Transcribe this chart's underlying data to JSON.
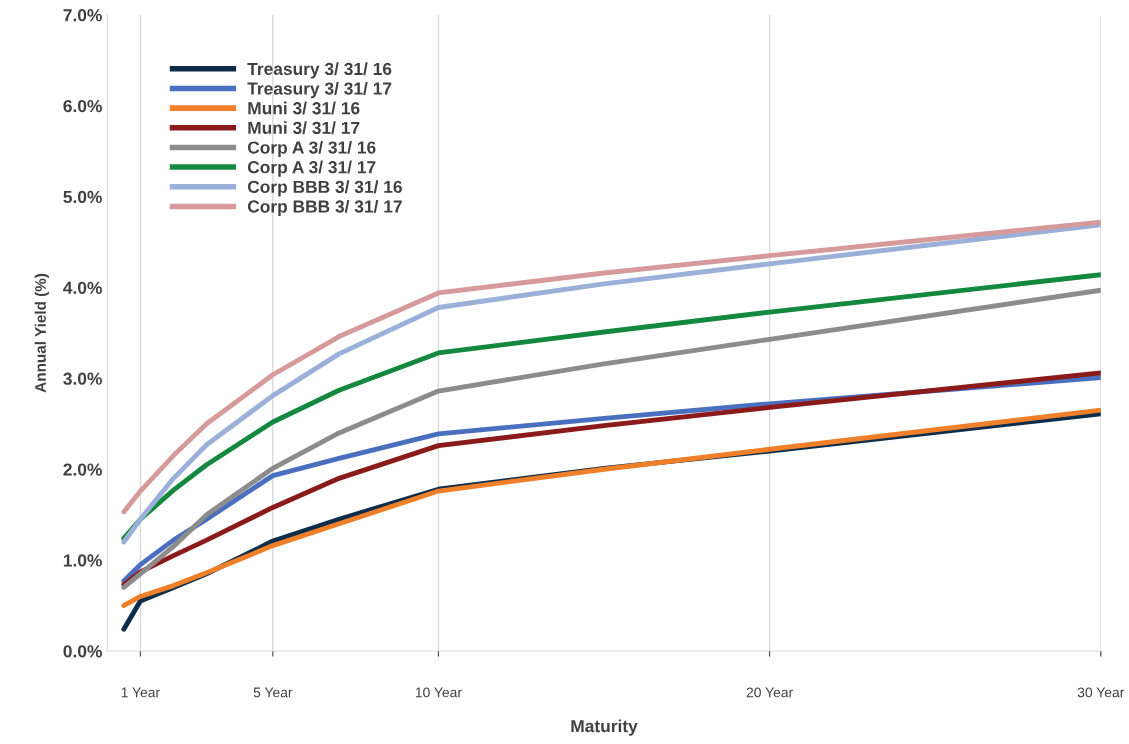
{
  "chart_data": {
    "type": "line",
    "xlabel": "Maturity",
    "ylabel": "Annual Yield (%)",
    "x": [
      0.5,
      1,
      2,
      3,
      5,
      7,
      10,
      15,
      20,
      30
    ],
    "xlim": [
      0,
      30
    ],
    "xticks": [
      {
        "value": 1,
        "label": "1 Year"
      },
      {
        "value": 5,
        "label": "5 Year"
      },
      {
        "value": 10,
        "label": "10 Year"
      },
      {
        "value": 20,
        "label": "20 Year"
      },
      {
        "value": 30,
        "label": "30 Year"
      }
    ],
    "ylim": [
      0,
      7
    ],
    "yticks": [
      {
        "value": 0,
        "label": "0.0%"
      },
      {
        "value": 1,
        "label": "1.0%"
      },
      {
        "value": 2,
        "label": "2.0%"
      },
      {
        "value": 3,
        "label": "3.0%"
      },
      {
        "value": 4,
        "label": "4.0%"
      },
      {
        "value": 5,
        "label": "5.0%"
      },
      {
        "value": 6,
        "label": "6.0%"
      },
      {
        "value": 7,
        "label": "7.0%"
      }
    ],
    "grid": "x",
    "legend": "top left",
    "marker": "none",
    "line_style": "solid",
    "series": [
      {
        "name": "Treasury 3/ 31/ 16",
        "color": "#0d2d4a",
        "values": [
          0.24,
          0.55,
          0.7,
          0.85,
          1.21,
          1.45,
          1.78,
          2.01,
          2.2,
          2.61
        ]
      },
      {
        "name": "Treasury 3/ 31/ 17",
        "color": "#4a6fbf",
        "values": [
          0.77,
          0.95,
          1.22,
          1.45,
          1.93,
          2.12,
          2.39,
          2.56,
          2.72,
          3.01
        ]
      },
      {
        "name": "Muni 3/ 31/ 16",
        "color": "#f07f2a",
        "values": [
          0.5,
          0.6,
          0.72,
          0.86,
          1.16,
          1.4,
          1.76,
          2.0,
          2.22,
          2.65
        ]
      },
      {
        "name": "Muni 3/ 31/ 17",
        "color": "#8b1a1a",
        "values": [
          0.73,
          0.87,
          1.05,
          1.22,
          1.58,
          1.9,
          2.26,
          2.48,
          2.68,
          3.06
        ]
      },
      {
        "name": "Corp A 3/ 31/ 16",
        "color": "#8c8c8c",
        "values": [
          0.7,
          0.85,
          1.15,
          1.5,
          2.01,
          2.4,
          2.86,
          3.16,
          3.43,
          3.97
        ]
      },
      {
        "name": "Corp A 3/ 31/ 17",
        "color": "#13883e",
        "values": [
          1.24,
          1.45,
          1.77,
          2.05,
          2.52,
          2.87,
          3.28,
          3.51,
          3.73,
          4.14
        ]
      },
      {
        "name": "Corp BBB 3/ 31/ 16",
        "color": "#9ab0d8",
        "values": [
          1.2,
          1.45,
          1.9,
          2.27,
          2.81,
          3.27,
          3.78,
          4.04,
          4.26,
          4.69
        ]
      },
      {
        "name": "Corp BBB 3/ 31/ 17",
        "color": "#d69a9a",
        "values": [
          1.53,
          1.76,
          2.15,
          2.5,
          3.04,
          3.46,
          3.94,
          4.16,
          4.35,
          4.72
        ]
      }
    ]
  }
}
